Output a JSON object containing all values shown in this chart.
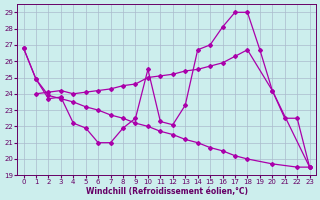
{
  "xlabel": "Windchill (Refroidissement éolien,°C)",
  "xlim": [
    -0.5,
    23.5
  ],
  "ylim": [
    19,
    29.5
  ],
  "yticks": [
    19,
    20,
    21,
    22,
    23,
    24,
    25,
    26,
    27,
    28,
    29
  ],
  "xticks": [
    0,
    1,
    2,
    3,
    4,
    5,
    6,
    7,
    8,
    9,
    10,
    11,
    12,
    13,
    14,
    15,
    16,
    17,
    18,
    19,
    20,
    21,
    22,
    23
  ],
  "bg_color": "#cceeed",
  "grid_color": "#aabbcc",
  "line_color": "#aa00aa",
  "line1_x": [
    0,
    1,
    2,
    3,
    4,
    5,
    6,
    7,
    8,
    9,
    10,
    11,
    12,
    13,
    14,
    15,
    16,
    17,
    18,
    19,
    20,
    21,
    22,
    23
  ],
  "line1_y": [
    26.8,
    24.9,
    23.7,
    23.8,
    22.2,
    21.9,
    21.0,
    21.0,
    21.9,
    22.5,
    25.5,
    22.3,
    22.1,
    23.3,
    26.7,
    27.0,
    28.1,
    29.0,
    29.0,
    26.7,
    24.2,
    22.5,
    22.5,
    19.5
  ],
  "line2_x": [
    0,
    1,
    2,
    3,
    4,
    5,
    6,
    7,
    8,
    9,
    10,
    11,
    12,
    13,
    14,
    15,
    16,
    17,
    18,
    20,
    22,
    23
  ],
  "line2_y": [
    26.8,
    24.9,
    23.9,
    23.7,
    23.5,
    23.2,
    23.0,
    22.7,
    22.5,
    22.2,
    22.0,
    21.7,
    21.5,
    21.2,
    21.0,
    20.7,
    20.5,
    20.2,
    20.0,
    19.7,
    19.5,
    19.5
  ],
  "line3_x": [
    1,
    2,
    3,
    4,
    5,
    6,
    7,
    8,
    9,
    10,
    11,
    12,
    13,
    14,
    15,
    16,
    17,
    18,
    20,
    23
  ],
  "line3_y": [
    24.0,
    24.1,
    24.2,
    24.0,
    24.1,
    24.2,
    24.3,
    24.5,
    24.6,
    25.0,
    25.1,
    25.2,
    25.4,
    25.5,
    25.7,
    25.9,
    26.3,
    26.7,
    24.2,
    19.5
  ]
}
